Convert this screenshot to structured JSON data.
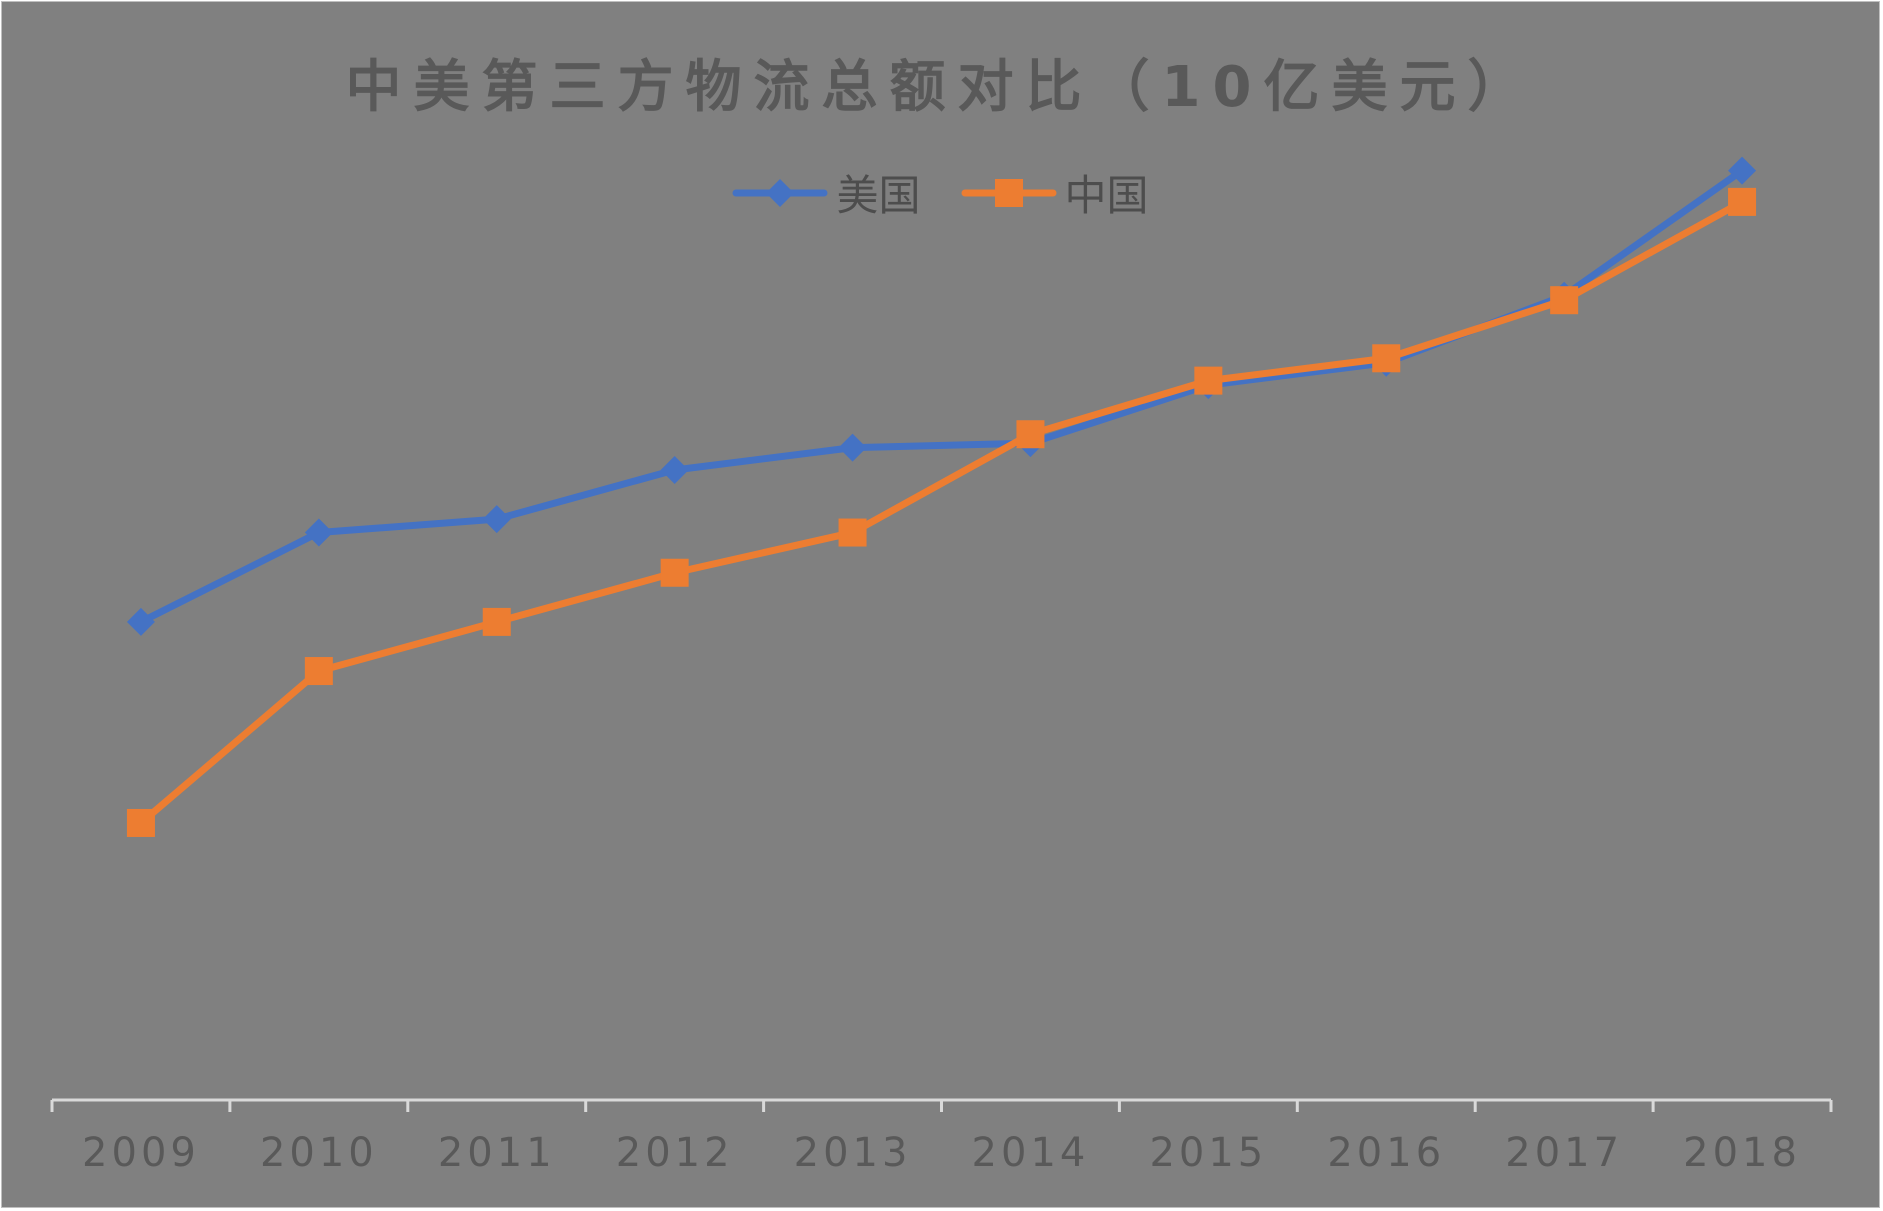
{
  "chart_data": {
    "type": "line",
    "title": "中美第三方物流总额对比（10亿美元）",
    "xlabel": "",
    "ylabel": "",
    "categories": [
      "2009",
      "2010",
      "2011",
      "2012",
      "2013",
      "2014",
      "2015",
      "2016",
      "2017",
      "2018"
    ],
    "ylim": [
      0,
      220
    ],
    "grid": false,
    "legend_position": "top",
    "series": [
      {
        "name": "美国",
        "color": "#4472c4",
        "marker": "diamond",
        "values": [
          107,
          127,
          130,
          141,
          146,
          147,
          160,
          165,
          180,
          208
        ]
      },
      {
        "name": "中国",
        "color": "#ed7d31",
        "marker": "square",
        "values": [
          62,
          96,
          107,
          118,
          127,
          149,
          161,
          166,
          179,
          201
        ]
      }
    ]
  }
}
